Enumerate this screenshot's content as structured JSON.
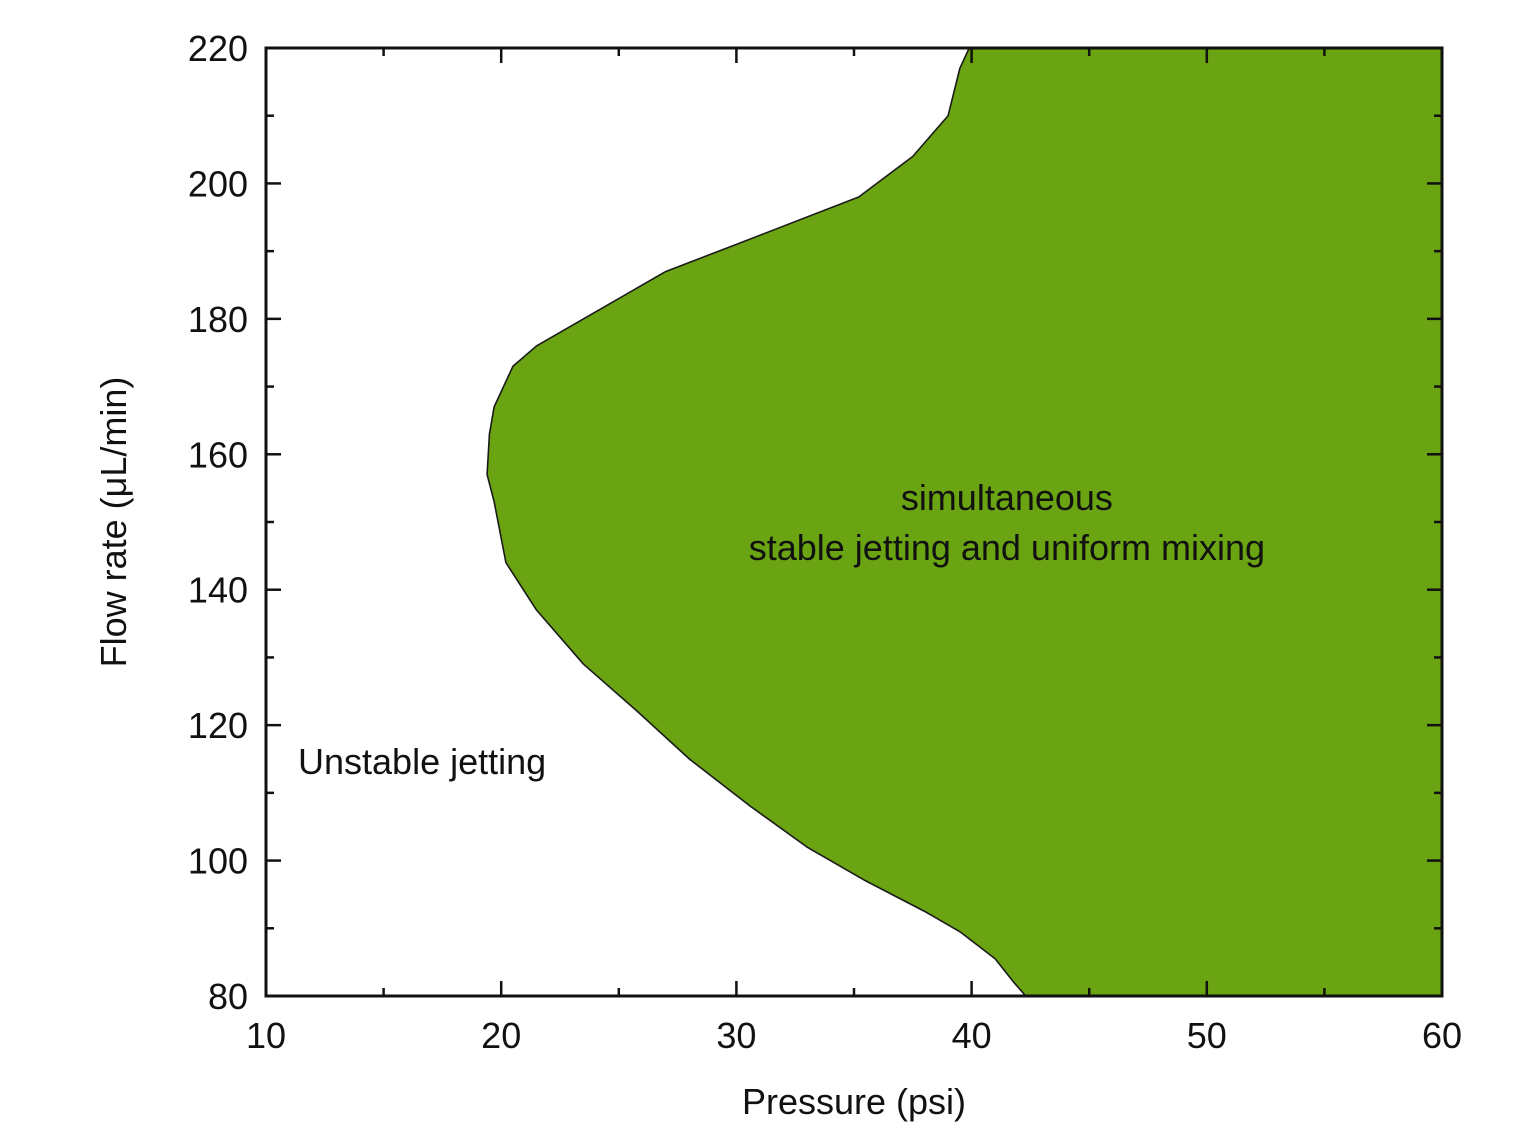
{
  "chart_data": {
    "type": "area",
    "title": "",
    "xlabel": "Pressure (psi)",
    "ylabel": "Flow rate (μL/min)",
    "xlim": [
      10,
      60
    ],
    "ylim": [
      80,
      220
    ],
    "x_ticks": [
      "10",
      "20",
      "30",
      "40",
      "50",
      "60"
    ],
    "y_ticks": [
      "80",
      "100",
      "120",
      "140",
      "160",
      "180",
      "200",
      "220"
    ],
    "grid": false,
    "legend": "none",
    "region_boundary": {
      "name": "simultaneous stable jetting and uniform mixing",
      "points": [
        {
          "x": 39.9,
          "y": 220
        },
        {
          "x": 39.5,
          "y": 217
        },
        {
          "x": 39.0,
          "y": 210
        },
        {
          "x": 37.5,
          "y": 204
        },
        {
          "x": 35.2,
          "y": 198
        },
        {
          "x": 30.0,
          "y": 191
        },
        {
          "x": 27.0,
          "y": 187
        },
        {
          "x": 24.5,
          "y": 182
        },
        {
          "x": 21.5,
          "y": 176
        },
        {
          "x": 20.5,
          "y": 173
        },
        {
          "x": 19.7,
          "y": 167
        },
        {
          "x": 19.5,
          "y": 163
        },
        {
          "x": 19.4,
          "y": 157
        },
        {
          "x": 19.7,
          "y": 153
        },
        {
          "x": 20.2,
          "y": 144
        },
        {
          "x": 21.5,
          "y": 137
        },
        {
          "x": 23.5,
          "y": 129
        },
        {
          "x": 25.8,
          "y": 122
        },
        {
          "x": 28.0,
          "y": 115
        },
        {
          "x": 30.6,
          "y": 108
        },
        {
          "x": 33.0,
          "y": 102
        },
        {
          "x": 35.5,
          "y": 97
        },
        {
          "x": 38.0,
          "y": 92.5
        },
        {
          "x": 39.5,
          "y": 89.5
        },
        {
          "x": 41.0,
          "y": 85.5
        },
        {
          "x": 41.8,
          "y": 82
        },
        {
          "x": 42.3,
          "y": 80
        }
      ],
      "fill": "right",
      "color": "#6aa412"
    },
    "annotations": [
      {
        "lines": [
          "simultaneous",
          "stable jetting and uniform mixing"
        ],
        "x": 41.5,
        "y": 153
      },
      {
        "lines": [
          "Unstable jetting"
        ],
        "x": 11.5,
        "y": 115
      }
    ]
  }
}
